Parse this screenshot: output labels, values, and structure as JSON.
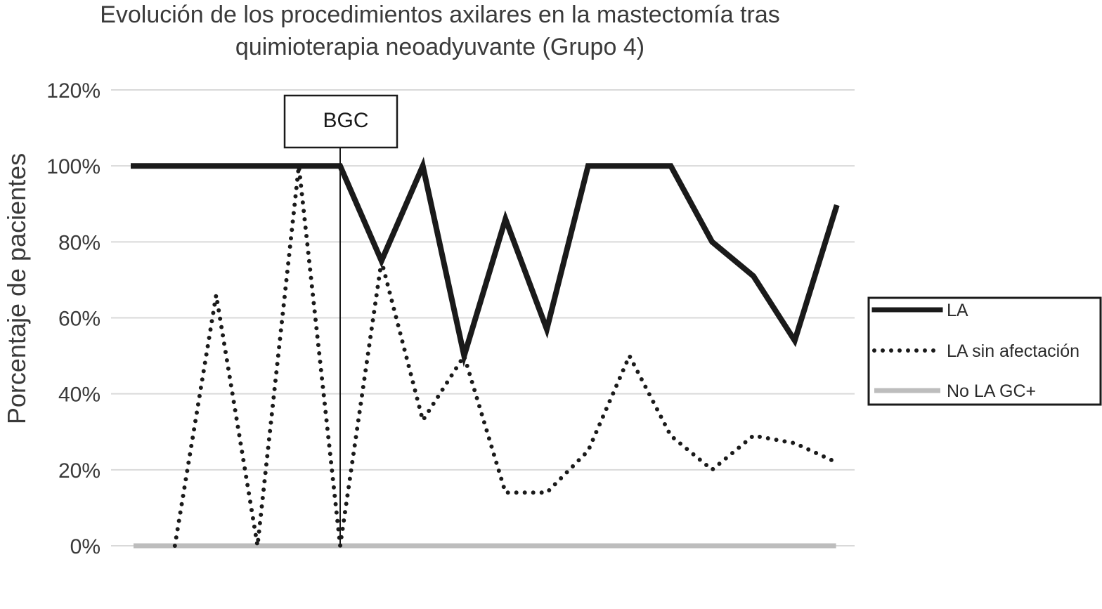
{
  "chart_data": {
    "type": "line",
    "title": "Evolución de los procedimientos axilares en la mastectomía tras quimioterapia neoadyuvante (Grupo 4)",
    "title_lines": [
      "Evolución de los procedimientos axilares en la mastectomía tras",
      "quimioterapia neoadyuvante (Grupo 4)"
    ],
    "xlabel": "",
    "ylabel": "Porcentaje de pacientes",
    "ylim": [
      0,
      120
    ],
    "yticks": [
      0,
      20,
      40,
      60,
      80,
      100,
      120
    ],
    "ytick_labels": [
      "0%",
      "20%",
      "40%",
      "60%",
      "80%",
      "100%",
      "120%"
    ],
    "x": [
      1,
      2,
      3,
      4,
      5,
      6,
      7,
      8,
      9,
      10,
      11,
      12,
      13,
      14,
      15,
      16,
      17,
      18
    ],
    "grid": true,
    "legend_position": "right",
    "annotation": {
      "label": "BGC",
      "x": 6
    },
    "series": [
      {
        "name": "LA",
        "style": "solid-thick",
        "color": "#1a1a1a",
        "values": [
          100,
          100,
          100,
          100,
          100,
          100,
          75,
          100,
          50,
          86,
          57,
          100,
          100,
          100,
          80,
          71,
          54,
          89
        ]
      },
      {
        "name": "LA sin afectación",
        "style": "dotted",
        "color": "#1a1a1a",
        "values": [
          null,
          0,
          66,
          0,
          100,
          0,
          75,
          33,
          50,
          14,
          14,
          25,
          50,
          29,
          20,
          29,
          27,
          22
        ]
      },
      {
        "name": "No LA GC+",
        "style": "solid-gray",
        "color": "#bdbdbd",
        "values": [
          0,
          0,
          0,
          0,
          0,
          0,
          0,
          0,
          0,
          0,
          0,
          0,
          0,
          0,
          0,
          0,
          0,
          0
        ]
      }
    ]
  }
}
